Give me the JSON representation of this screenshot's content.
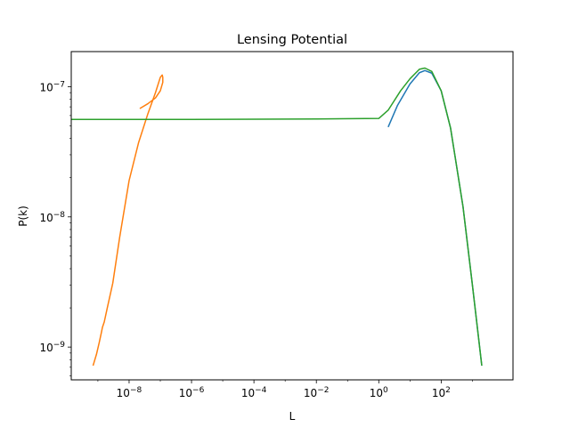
{
  "chart_data": {
    "type": "line",
    "title": "Lensing Potential",
    "xlabel": "L",
    "ylabel": "P(k)",
    "xscale": "log",
    "yscale": "log",
    "xlim": [
      1.4e-10,
      20000.0
    ],
    "ylim": [
      5.6e-10,
      1.86e-07
    ],
    "grid": false,
    "x_ticks": [
      {
        "value": 1e-08,
        "base": "10",
        "exp": "−8"
      },
      {
        "value": 1e-06,
        "base": "10",
        "exp": "−6"
      },
      {
        "value": 0.0001,
        "base": "10",
        "exp": "−4"
      },
      {
        "value": 0.01,
        "base": "10",
        "exp": "−2"
      },
      {
        "value": 1,
        "base": "10",
        "exp": "0"
      },
      {
        "value": 100,
        "base": "10",
        "exp": "2"
      }
    ],
    "y_ticks": [
      {
        "value": 1e-09,
        "base": "10",
        "exp": "−9"
      },
      {
        "value": 1e-08,
        "base": "10",
        "exp": "−8"
      },
      {
        "value": 1e-07,
        "base": "10",
        "exp": "−7"
      }
    ],
    "series": [
      {
        "color": "#1f77b4",
        "points": [
          [
            2,
            4.9e-08
          ],
          [
            4,
            7.2e-08
          ],
          [
            10,
            1.05e-07
          ],
          [
            20,
            1.28e-07
          ],
          [
            30,
            1.33e-07
          ],
          [
            50,
            1.27e-07
          ],
          [
            100,
            9.3e-08
          ],
          [
            200,
            4.8e-08
          ],
          [
            500,
            1.2e-08
          ],
          [
            1000,
            3e-09
          ],
          [
            2000,
            7.2e-10
          ]
        ]
      },
      {
        "color": "#ff7f0e",
        "points": [
          [
            7e-10,
            7.2e-10
          ],
          [
            9e-10,
            8.8e-10
          ],
          [
            1.1e-09,
            1.08e-09
          ],
          [
            1.3e-09,
            1.3e-09
          ],
          [
            1.4e-09,
            1.42e-09
          ],
          [
            1.6e-09,
            1.56e-09
          ],
          [
            2e-09,
            2e-09
          ],
          [
            3e-09,
            3.1e-09
          ],
          [
            5e-09,
            7e-09
          ],
          [
            1e-08,
            1.9e-08
          ],
          [
            2e-08,
            3.7e-08
          ],
          [
            4e-08,
            6.2e-08
          ],
          [
            7e-08,
            9e-08
          ],
          [
            1e-07,
            1.18e-07
          ],
          [
            1.15e-07,
            1.23e-07
          ],
          [
            1.2e-07,
            1.18e-07
          ],
          [
            1.2e-07,
            1.08e-07
          ],
          [
            1e-07,
            9.3e-08
          ],
          [
            7e-08,
            8.2e-08
          ],
          [
            4e-08,
            7.4e-08
          ],
          [
            2.2e-08,
            6.8e-08
          ]
        ]
      },
      {
        "color": "#2ca02c",
        "points": [
          [
            1.4e-10,
            5.6e-08
          ],
          [
            1e-06,
            5.6e-08
          ],
          [
            0.01,
            5.65e-08
          ],
          [
            1,
            5.7e-08
          ],
          [
            2,
            6.6e-08
          ],
          [
            5,
            9.3e-08
          ],
          [
            10,
            1.15e-07
          ],
          [
            20,
            1.36e-07
          ],
          [
            30,
            1.39e-07
          ],
          [
            50,
            1.31e-07
          ],
          [
            100,
            9.3e-08
          ],
          [
            200,
            4.8e-08
          ],
          [
            500,
            1.2e-08
          ],
          [
            1000,
            3e-09
          ],
          [
            2000,
            7.2e-10
          ]
        ]
      }
    ]
  }
}
